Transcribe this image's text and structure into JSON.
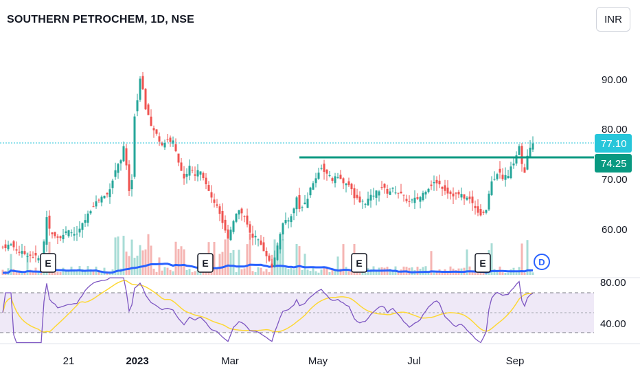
{
  "header": {
    "title": "SOUTHERN PETROCHEM, 1D, NSE",
    "currency": "INR"
  },
  "price_axis": {
    "labels": [
      "90.00",
      "80.00",
      "70.00",
      "60.00"
    ]
  },
  "price_tags": {
    "last": "77.10",
    "level": "74.25"
  },
  "rsi_axis": {
    "labels": [
      "80.00",
      "40.00"
    ]
  },
  "time_axis": {
    "labels": [
      "21",
      "2023",
      "Mar",
      "May",
      "Jul",
      "Sep"
    ]
  },
  "event_markers": {
    "earnings": [
      "E",
      "E",
      "E",
      "E"
    ],
    "dividend": "D"
  },
  "colors": {
    "up": "#26a69a",
    "down": "#ef5350",
    "level_line": "#089981",
    "last_price": "#26c6da",
    "volume_ma": "#2962ff",
    "rsi_line": "#7e57c2",
    "rsi_ma": "#fdd835",
    "rsi_band": "#ede7f6"
  },
  "chart_data": {
    "type": "candlestick",
    "symbol": "SOUTHERN PETROCHEM",
    "interval": "1D",
    "exchange": "NSE",
    "last_price": 77.1,
    "horizontal_level": 74.25,
    "y_range": [
      50,
      95
    ],
    "rsi_levels": [
      70,
      50,
      30
    ],
    "price_path": [
      [
        0,
        56.5
      ],
      [
        3,
        57.0
      ],
      [
        6,
        55.5
      ],
      [
        9,
        55.0
      ],
      [
        12,
        54.5
      ],
      [
        14,
        54.0
      ],
      [
        15,
        57.5
      ],
      [
        16,
        62.5
      ],
      [
        17,
        60.0
      ],
      [
        20,
        58.5
      ],
      [
        24,
        59.5
      ],
      [
        27,
        59.0
      ],
      [
        30,
        62.0
      ],
      [
        33,
        65.0
      ],
      [
        36,
        66.5
      ],
      [
        38,
        67.0
      ],
      [
        40,
        70.0
      ],
      [
        42,
        73.5
      ],
      [
        43,
        74.0
      ],
      [
        44,
        76.5
      ],
      [
        45,
        73.0
      ],
      [
        46,
        67.5
      ],
      [
        47,
        70.0
      ],
      [
        48,
        83.0
      ],
      [
        49,
        86.0
      ],
      [
        50,
        90.5
      ],
      [
        51,
        88.0
      ],
      [
        52,
        84.5
      ],
      [
        53,
        82.5
      ],
      [
        54,
        80.5
      ],
      [
        56,
        79.0
      ],
      [
        58,
        77.0
      ],
      [
        60,
        78.0
      ],
      [
        62,
        77.5
      ],
      [
        64,
        73.5
      ],
      [
        66,
        70.0
      ],
      [
        68,
        72.5
      ],
      [
        70,
        71.0
      ],
      [
        72,
        72.0
      ],
      [
        74,
        69.5
      ],
      [
        76,
        66.0
      ],
      [
        78,
        65.0
      ],
      [
        80,
        61.5
      ],
      [
        82,
        58.0
      ],
      [
        84,
        62.0
      ],
      [
        86,
        64.0
      ],
      [
        88,
        62.5
      ],
      [
        90,
        59.0
      ],
      [
        92,
        58.5
      ],
      [
        94,
        57.0
      ],
      [
        96,
        55.0
      ],
      [
        97,
        53.5
      ],
      [
        98,
        52.5
      ],
      [
        100,
        56.5
      ],
      [
        102,
        61.0
      ],
      [
        104,
        62.0
      ],
      [
        106,
        64.0
      ],
      [
        107,
        66.5
      ],
      [
        108,
        64.5
      ],
      [
        110,
        65.0
      ],
      [
        112,
        68.0
      ],
      [
        114,
        70.5
      ],
      [
        116,
        72.5
      ],
      [
        118,
        71.0
      ],
      [
        120,
        70.0
      ],
      [
        122,
        70.5
      ],
      [
        124,
        69.5
      ],
      [
        126,
        69.0
      ],
      [
        128,
        66.5
      ],
      [
        130,
        65.5
      ],
      [
        132,
        65.5
      ],
      [
        134,
        66.5
      ],
      [
        136,
        67.5
      ],
      [
        138,
        68.5
      ],
      [
        140,
        67.5
      ],
      [
        142,
        68.0
      ],
      [
        144,
        67.5
      ],
      [
        146,
        66.5
      ],
      [
        148,
        65.5
      ],
      [
        150,
        66.0
      ],
      [
        152,
        66.5
      ],
      [
        154,
        68.0
      ],
      [
        156,
        69.0
      ],
      [
        158,
        69.5
      ],
      [
        160,
        68.5
      ],
      [
        162,
        67.5
      ],
      [
        164,
        67.0
      ],
      [
        166,
        67.0
      ],
      [
        168,
        66.5
      ],
      [
        170,
        66.0
      ],
      [
        172,
        64.5
      ],
      [
        174,
        63.0
      ],
      [
        176,
        64.0
      ],
      [
        178,
        69.5
      ],
      [
        180,
        71.5
      ],
      [
        182,
        70.5
      ],
      [
        184,
        71.0
      ],
      [
        186,
        73.5
      ],
      [
        188,
        76.5
      ],
      [
        189,
        73.0
      ],
      [
        190,
        71.5
      ],
      [
        191,
        74.5
      ],
      [
        192,
        76.0
      ],
      [
        193,
        77.1
      ]
    ]
  }
}
